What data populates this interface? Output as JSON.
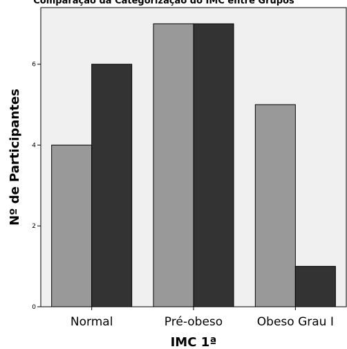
{
  "chart_data": {
    "type": "bar",
    "title": "Comparação da Categorização do IMC entre Grupos",
    "xlabel": "IMC 1ª",
    "ylabel": "Nº de Participantes",
    "categories": [
      "Normal",
      "Pré-obeso",
      "Obeso Grau I"
    ],
    "series": [
      {
        "values": [
          4,
          7,
          5
        ]
      },
      {
        "values": [
          6,
          7,
          1
        ]
      }
    ],
    "ylim": [
      0,
      7.4
    ],
    "yticks": [
      0,
      2,
      4,
      6
    ],
    "grid": false,
    "legend": "none",
    "colors": {
      "plot_background": "#f0f0f0",
      "series": [
        "#999999",
        "#333333"
      ],
      "bar_stroke": "#000000"
    }
  }
}
